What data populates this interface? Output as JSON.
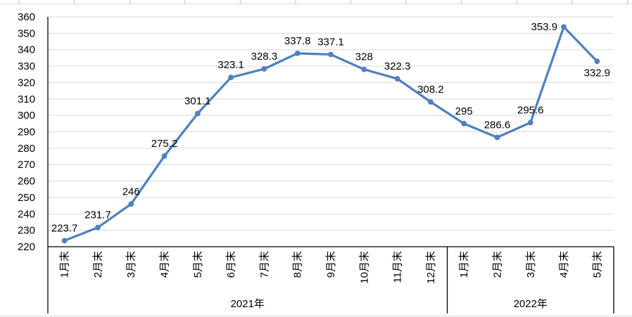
{
  "chart_data": {
    "type": "line",
    "title": "",
    "legend": "none",
    "grid": "horizontal",
    "categories": [
      "1月末",
      "2月末",
      "3月末",
      "4月末",
      "5月末",
      "6月末",
      "7月末",
      "8月末",
      "9月末",
      "10月末",
      "11月末",
      "12月末",
      "1月末",
      "2月末",
      "3月末",
      "4月末",
      "5月末"
    ],
    "category_groups": [
      {
        "label": "2021年",
        "count": 12
      },
      {
        "label": "2022年",
        "count": 5
      }
    ],
    "series": [
      {
        "name": "",
        "values": [
          223.7,
          231.7,
          246,
          275.2,
          301.1,
          323.1,
          328.3,
          337.8,
          337.1,
          328,
          322.3,
          308.2,
          295,
          286.6,
          295.6,
          353.9,
          332.9
        ]
      }
    ],
    "data_labels": [
      "223.7",
      "231.7",
      "246",
      "275.2",
      "301.1",
      "323.1",
      "328.3",
      "337.8",
      "337.1",
      "328",
      "322.3",
      "308.2",
      "295",
      "286.6",
      "295.6",
      "353.9",
      "332.9"
    ],
    "data_label_placement": {
      "default": "above",
      "overrides": {
        "15": "left",
        "16": "below"
      }
    },
    "y_axis": {
      "min": 220,
      "max": 360,
      "step": 10,
      "tick_labels": [
        "360",
        "350",
        "340",
        "330",
        "320",
        "310",
        "300",
        "290",
        "280",
        "270",
        "260",
        "250",
        "240",
        "230",
        "220"
      ]
    },
    "x_axis": {
      "label_rotation": "vertical"
    },
    "colors": {
      "series_line": "#4F81BD",
      "marker": "#4F81BD",
      "gridline": "#D9D9D9",
      "axis_line": "#000000",
      "label_text": "#000000",
      "worksheet_gridline": "#D9D9D9",
      "worksheet_column_tick": "#BFBFBF"
    }
  }
}
